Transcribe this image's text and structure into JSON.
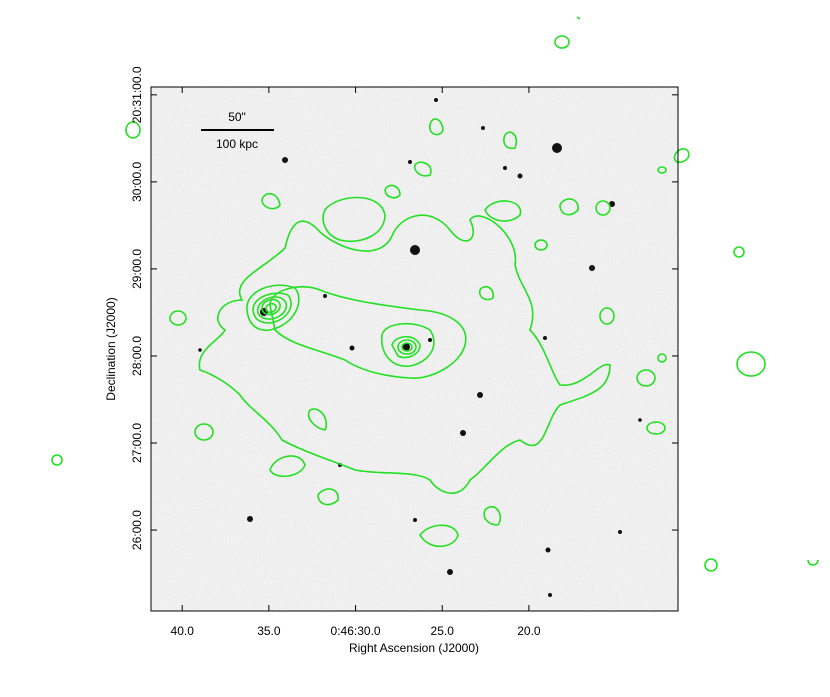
{
  "chart_data": {
    "type": "image",
    "xlabel": "Right Ascension (J2000)",
    "ylabel": "Declination (J2000)",
    "xlim": [
      41.8,
      11.4
    ],
    "xticks": [
      {
        "value": 40,
        "label": "40.0"
      },
      {
        "value": 35,
        "label": "35.0"
      },
      {
        "value": 30,
        "label": "0:46:30.0"
      },
      {
        "value": 25,
        "label": "25.0"
      },
      {
        "value": 20,
        "label": "20.0"
      }
    ],
    "ylim": [
      25.07,
      31.09
    ],
    "yticks": [
      {
        "value": 31,
        "label": "20:31:00.0"
      },
      {
        "value": 30,
        "label": "30:00.0"
      },
      {
        "value": 29,
        "label": "29:00.0"
      },
      {
        "value": 28,
        "label": "28:00.0"
      },
      {
        "value": 27,
        "label": "27:00.0"
      },
      {
        "value": 26,
        "label": "26:00.0"
      }
    ],
    "scale_bar": {
      "angle": "50\"",
      "distance": "100 kpc"
    }
  }
}
